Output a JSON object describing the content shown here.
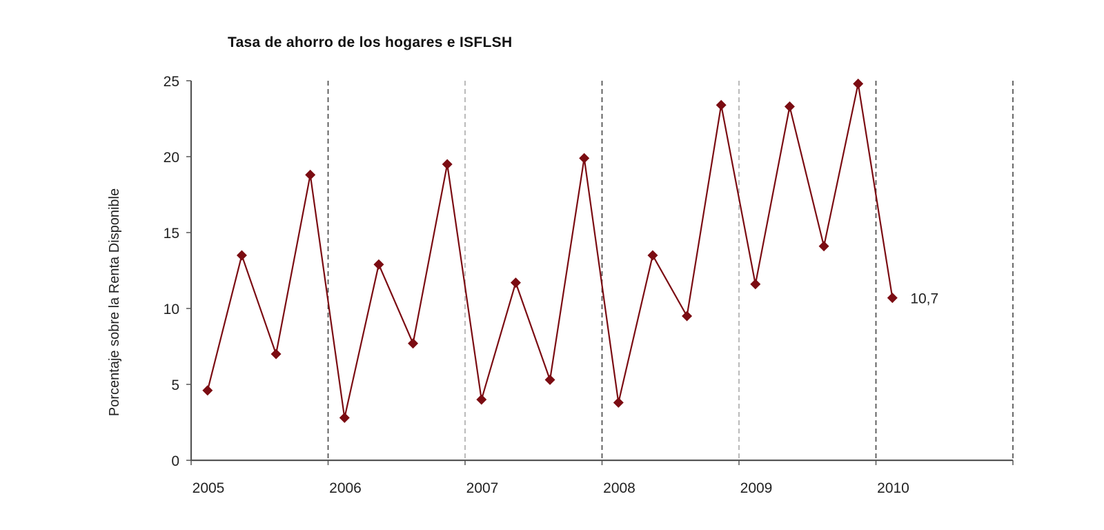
{
  "chart_data": {
    "type": "line",
    "title": "Tasa de ahorro de los hogares e ISFLSH",
    "xlabel": "",
    "ylabel": "Porcentaje sobre la Renta Disponible",
    "ylim": [
      0,
      25
    ],
    "yticks": [
      0,
      5,
      10,
      15,
      20,
      25
    ],
    "xtick_labels": [
      "2005",
      "2006",
      "2007",
      "2008",
      "2009",
      "2010"
    ],
    "grid": "vertical dashed lines at year boundaries",
    "legend": null,
    "x": [
      "2005Q1",
      "2005Q2",
      "2005Q3",
      "2005Q4",
      "2006Q1",
      "2006Q2",
      "2006Q3",
      "2006Q4",
      "2007Q1",
      "2007Q2",
      "2007Q3",
      "2007Q4",
      "2008Q1",
      "2008Q2",
      "2008Q3",
      "2008Q4",
      "2009Q1",
      "2009Q2",
      "2009Q3",
      "2009Q4",
      "2010Q1"
    ],
    "series": [
      {
        "name": "Tasa de ahorro",
        "color": "#7b0c12",
        "marker": "diamond",
        "values": [
          4.6,
          13.5,
          7.0,
          18.8,
          2.8,
          12.9,
          7.7,
          19.5,
          4.0,
          11.7,
          5.3,
          19.9,
          3.8,
          13.5,
          9.5,
          23.4,
          11.6,
          23.3,
          14.1,
          24.8,
          10.7
        ]
      }
    ],
    "annotations": [
      {
        "point": "2010Q1",
        "text": "10,7"
      }
    ]
  },
  "colors": {
    "line": "#7b0c12",
    "axis": "#555555",
    "grid_dark": "#444444",
    "grid_light": "#aaaaaa",
    "text": "#222222"
  }
}
